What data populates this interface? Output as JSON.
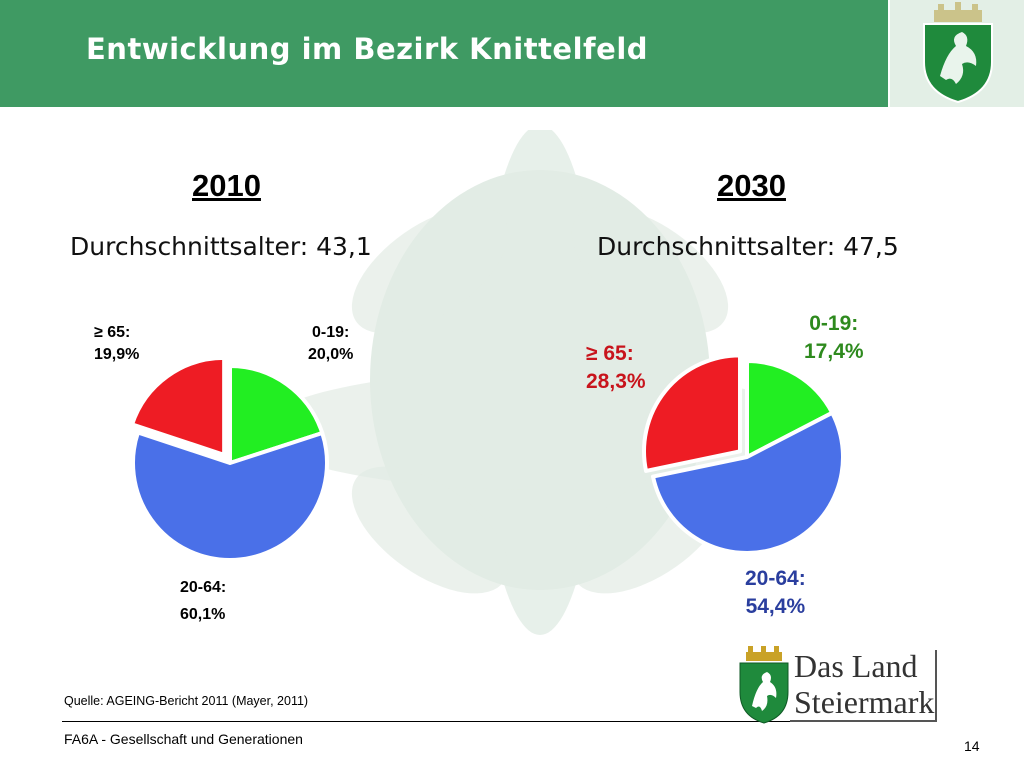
{
  "header": {
    "title": "Entwicklung im Bezirk Knittelfeld"
  },
  "chart_data": [
    {
      "type": "pie",
      "title": "2010",
      "subtitle": "Durchschnittsalter: 43,1",
      "slices": [
        {
          "label": "0-19:",
          "value": 20.0,
          "value_label": "20,0%",
          "color": "#22ee22"
        },
        {
          "label": "20-64:",
          "value": 60.1,
          "value_label": "60,1%",
          "color": "#4a70e8"
        },
        {
          "label": "≥ 65:",
          "value": 19.9,
          "value_label": "19,9%",
          "color": "#ee1c24"
        }
      ]
    },
    {
      "type": "pie",
      "title": "2030",
      "subtitle": "Durchschnittsalter: 47,5",
      "slices": [
        {
          "label": "0-19:",
          "value": 17.4,
          "value_label": "17,4%",
          "color": "#22ee22",
          "label_color": "#2e8a1e"
        },
        {
          "label": "20-64:",
          "value": 54.4,
          "value_label": "54,4%",
          "color": "#4a70e8",
          "label_color": "#2a3e9e"
        },
        {
          "label": "≥ 65:",
          "value": 28.3,
          "value_label": "28,3%",
          "color": "#ee1c24",
          "label_color": "#c8141c"
        }
      ]
    }
  ],
  "footer": {
    "source": "Quelle: AGEING-Bericht 2011 (Mayer, 2011)",
    "department": "FA6A - Gesellschaft und Generationen",
    "page_number": "14"
  },
  "logo": {
    "line1": "Das Land",
    "line2": "Steiermark"
  }
}
